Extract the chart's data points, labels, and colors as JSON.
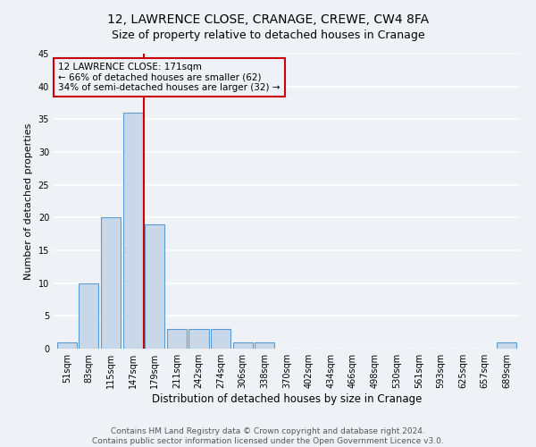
{
  "title": "12, LAWRENCE CLOSE, CRANAGE, CREWE, CW4 8FA",
  "subtitle": "Size of property relative to detached houses in Cranage",
  "xlabel": "Distribution of detached houses by size in Cranage",
  "ylabel": "Number of detached properties",
  "bar_labels": [
    "51sqm",
    "83sqm",
    "115sqm",
    "147sqm",
    "179sqm",
    "211sqm",
    "242sqm",
    "274sqm",
    "306sqm",
    "338sqm",
    "370sqm",
    "402sqm",
    "434sqm",
    "466sqm",
    "498sqm",
    "530sqm",
    "561sqm",
    "593sqm",
    "625sqm",
    "657sqm",
    "689sqm"
  ],
  "bar_values": [
    1,
    10,
    20,
    36,
    19,
    3,
    3,
    3,
    1,
    1,
    0,
    0,
    0,
    0,
    0,
    0,
    0,
    0,
    0,
    0,
    1
  ],
  "bar_color": "#c8d8e8",
  "bar_edge_color": "#5b9bd5",
  "marker_label": "12 LAWRENCE CLOSE: 171sqm",
  "pct_smaller": 66,
  "n_smaller": 62,
  "pct_larger": 34,
  "n_larger": 32,
  "annotation_box_color": "#cc0000",
  "vline_color": "#cc0000",
  "vline_x": 3.5,
  "ylim": [
    0,
    45
  ],
  "yticks": [
    0,
    5,
    10,
    15,
    20,
    25,
    30,
    35,
    40,
    45
  ],
  "background_color": "#eef2f7",
  "grid_color": "#ffffff",
  "footer1": "Contains HM Land Registry data © Crown copyright and database right 2024.",
  "footer2": "Contains public sector information licensed under the Open Government Licence v3.0.",
  "title_fontsize": 10,
  "subtitle_fontsize": 9,
  "xlabel_fontsize": 8.5,
  "ylabel_fontsize": 8,
  "tick_fontsize": 7,
  "annotation_fontsize": 7.5,
  "footer_fontsize": 6.5
}
